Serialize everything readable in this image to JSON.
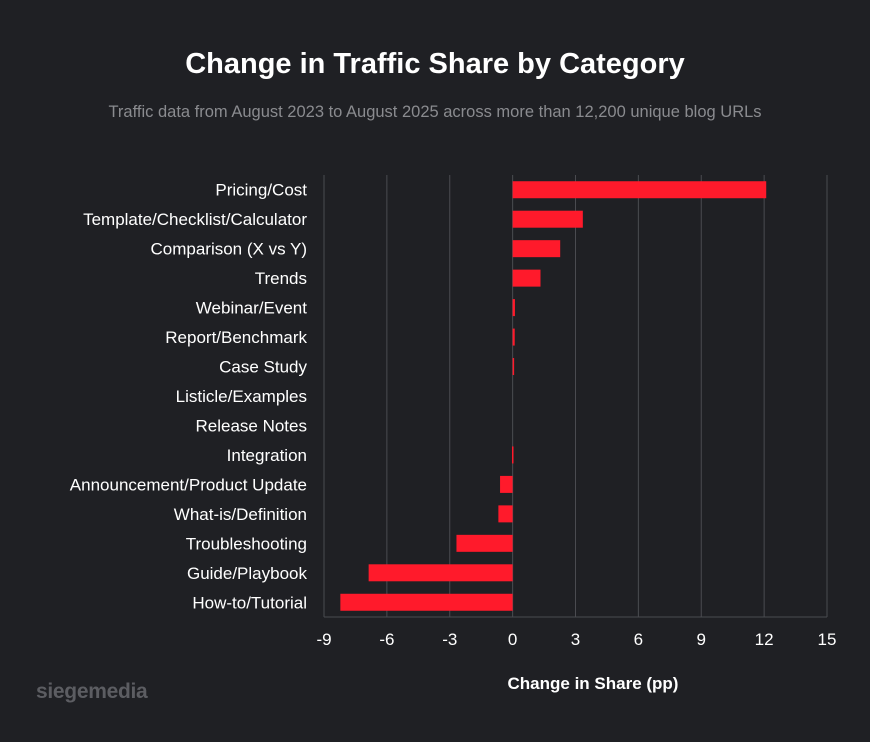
{
  "title": "Change in Traffic Share by Category",
  "subtitle": "Traffic data from August 2023 to August 2025 across more than 12,200 unique blog URLs",
  "logo_text": "siegemedia",
  "colors": {
    "background": "#1f2024",
    "bar": "#ff1a2b",
    "grid": "#4a4b50"
  },
  "chart_data": {
    "type": "bar",
    "orientation": "horizontal",
    "title": "Change in Traffic Share by Category",
    "xlabel": "Change in Share (pp)",
    "ylabel": "",
    "xlim": [
      -9,
      15
    ],
    "xticks": [
      -9,
      -6,
      -3,
      0,
      3,
      6,
      9,
      12,
      15
    ],
    "grid": "vertical",
    "categories": [
      "Pricing/Cost",
      "Template/Checklist/Calculator",
      "Comparison (X vs Y)",
      "Trends",
      "Webinar/Event",
      "Report/Benchmark",
      "Case Study",
      "Listicle/Examples",
      "Release Notes",
      "Integration",
      "Announcement/Product Update",
      "What-is/Definition",
      "Troubleshooting",
      "Guide/Playbook",
      "How-to/Tutorial"
    ],
    "values": [
      12.1,
      3.35,
      2.27,
      1.33,
      0.11,
      0.1,
      0.06,
      0.0,
      0.0,
      -0.03,
      -0.6,
      -0.68,
      -2.68,
      -6.87,
      -8.22
    ]
  }
}
